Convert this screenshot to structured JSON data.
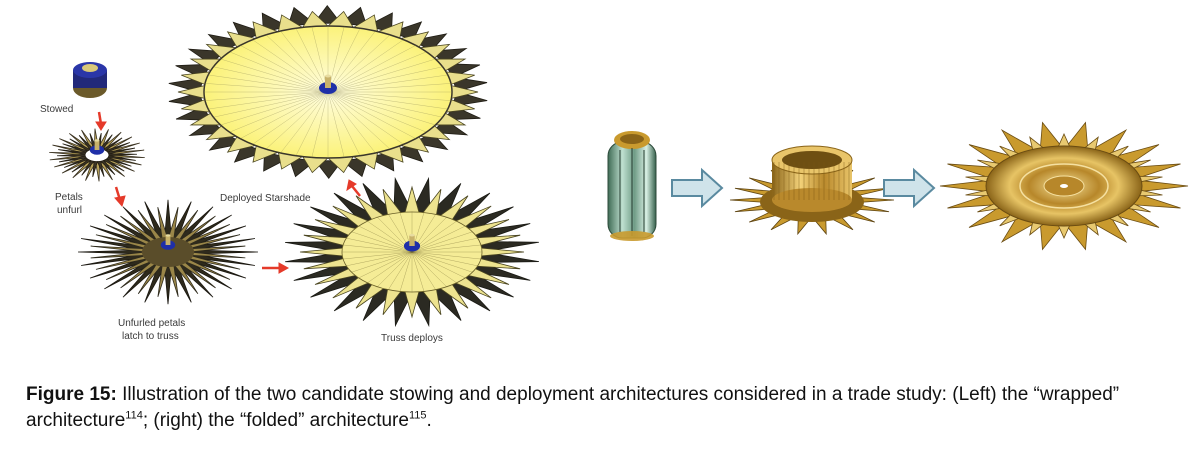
{
  "labels": {
    "stowed": "Stowed",
    "petals_unfurl_line1": "Petals",
    "petals_unfurl_line2": "unfurl",
    "deployed_starshade": "Deployed Starshade",
    "unfurled_petals_line1": "Unfurled petals",
    "unfurled_petals_line2": "latch to truss",
    "truss_deploys": "Truss deploys"
  },
  "caption": {
    "figure_label": "Figure 15:",
    "text_part1": " Illustration of the two candidate stowing and deployment architectures considered in a trade study: (Left) the “wrapped” architecture",
    "ref1": "114",
    "text_part2": "; (right) the “folded” architecture",
    "ref2": "115",
    "text_part3": "."
  },
  "colors": {
    "petal_yellow": "#e8de8a",
    "petal_dark": "#2e2a1c",
    "disk_yellow": "#fffaa0",
    "hub_blue": "#1f2fa8",
    "arrow_red": "#e53a2a",
    "arrow_blue_fill": "#cfe3ea",
    "arrow_blue_stroke": "#5a8aa0",
    "gold": "#c99a2e"
  }
}
